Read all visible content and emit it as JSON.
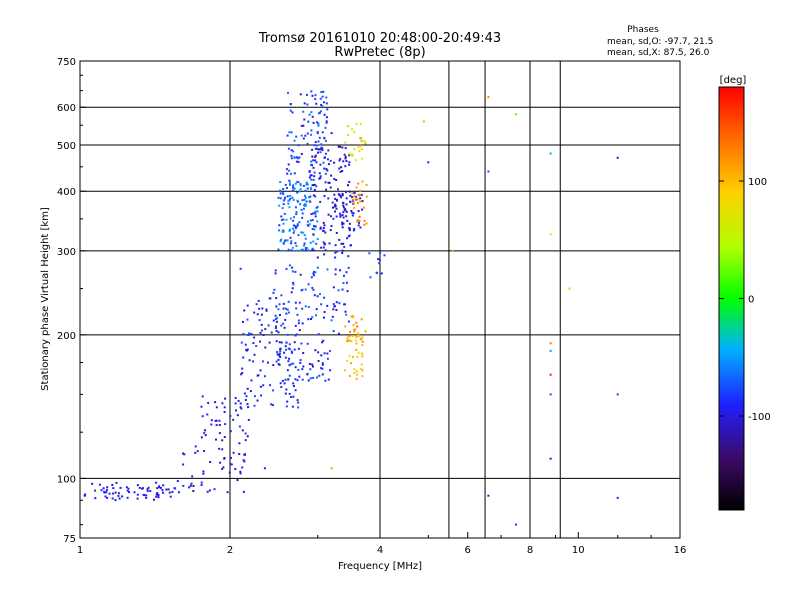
{
  "chart_data": {
    "type": "scatter",
    "title": "Tromsø 20161010 20:48:00-20:49:43",
    "subtitle": "RwPretec (8p)",
    "stats": {
      "heading": "Phases",
      "line1": "mean, sd,O: -97.7, 21.5",
      "line2": "mean, sd,X:  87.5, 26.0"
    },
    "xlabel": "Frequency [MHz]",
    "ylabel": "Stationary phase Virtual Height [km]",
    "x_scale": "log",
    "y_scale": "log",
    "xlim": [
      1,
      16
    ],
    "ylim": [
      75,
      750
    ],
    "x_ticks": [
      {
        "value": 1,
        "label": "1"
      },
      {
        "value": 2,
        "label": "2"
      },
      {
        "value": 4,
        "label": "4"
      },
      {
        "value": 6,
        "label": "6"
      },
      {
        "value": 8,
        "label": "8"
      },
      {
        "value": 10,
        "label": "10"
      },
      {
        "value": 16,
        "label": "16"
      }
    ],
    "y_ticks": [
      {
        "value": 75,
        "label": "75"
      },
      {
        "value": 100,
        "label": "100"
      },
      {
        "value": 200,
        "label": "200"
      },
      {
        "value": 300,
        "label": "300"
      },
      {
        "value": 400,
        "label": "400"
      },
      {
        "value": 500,
        "label": "500"
      },
      {
        "value": 600,
        "label": "600"
      },
      {
        "value": 750,
        "label": "750"
      }
    ],
    "x_grid": [
      2,
      4,
      5.5,
      6.5,
      8,
      9.2
    ],
    "y_grid": [
      100,
      200,
      300,
      400,
      500,
      600
    ],
    "grid": true,
    "colorbar": {
      "label": "[deg]",
      "range": [
        -180,
        180
      ],
      "ticks": [
        {
          "value": 100,
          "label": "100"
        },
        {
          "value": 0,
          "label": "0"
        },
        {
          "value": -100,
          "label": "-100"
        }
      ]
    },
    "clusters": [
      {
        "x": [
          1.02,
          1.55
        ],
        "y": [
          90,
          98
        ],
        "phase": [
          -110,
          -85
        ],
        "n": 70
      },
      {
        "x": [
          1.55,
          2.15
        ],
        "y": [
          93,
          118
        ],
        "phase": [
          -115,
          -85
        ],
        "n": 50
      },
      {
        "x": [
          1.75,
          2.2
        ],
        "y": [
          118,
          150
        ],
        "phase": [
          -115,
          -80
        ],
        "n": 45
      },
      {
        "x": [
          2.1,
          2.8
        ],
        "y": [
          140,
          240
        ],
        "phase": [
          -110,
          -70
        ],
        "n": 130
      },
      {
        "x": [
          2.4,
          3.5
        ],
        "y": [
          200,
          280
        ],
        "phase": [
          -105,
          -60
        ],
        "n": 90
      },
      {
        "x": [
          2.5,
          3.2
        ],
        "y": [
          160,
          195
        ],
        "phase": [
          -110,
          -70
        ],
        "n": 60
      },
      {
        "x": [
          2.5,
          3.0
        ],
        "y": [
          300,
          420
        ],
        "phase": [
          -85,
          -45
        ],
        "n": 160
      },
      {
        "x": [
          2.6,
          3.2
        ],
        "y": [
          420,
          650
        ],
        "phase": [
          -100,
          -60
        ],
        "n": 110
      },
      {
        "x": [
          2.9,
          3.5
        ],
        "y": [
          290,
          500
        ],
        "phase": [
          -120,
          -85
        ],
        "n": 130
      },
      {
        "x": [
          3.2,
          3.7
        ],
        "y": [
          330,
          400
        ],
        "phase": [
          -115,
          -80
        ],
        "n": 50
      },
      {
        "x": [
          3.4,
          3.7
        ],
        "y": [
          160,
          200
        ],
        "phase": [
          80,
          115
        ],
        "n": 40
      },
      {
        "x": [
          3.4,
          3.75
        ],
        "y": [
          200,
          220
        ],
        "phase": [
          100,
          135
        ],
        "n": 15
      },
      {
        "x": [
          3.5,
          3.8
        ],
        "y": [
          340,
          420
        ],
        "phase": [
          100,
          135
        ],
        "n": 25
      },
      {
        "x": [
          3.4,
          3.75
        ],
        "y": [
          460,
          560
        ],
        "phase": [
          35,
          110
        ],
        "n": 25
      },
      {
        "x": [
          3.8,
          4.1
        ],
        "y": [
          260,
          300
        ],
        "phase": [
          -95,
          -65
        ],
        "n": 10
      }
    ],
    "points": [
      {
        "x": 2.35,
        "y": 105,
        "phase": -95
      },
      {
        "x": 2.1,
        "y": 275,
        "phase": -85
      },
      {
        "x": 3.2,
        "y": 105,
        "phase": 110
      },
      {
        "x": 4.9,
        "y": 560,
        "phase": 110
      },
      {
        "x": 5.0,
        "y": 460,
        "phase": -100
      },
      {
        "x": 5.6,
        "y": 300,
        "phase": 115
      },
      {
        "x": 6.6,
        "y": 630,
        "phase": 125
      },
      {
        "x": 6.6,
        "y": 440,
        "phase": -75
      },
      {
        "x": 6.6,
        "y": 92,
        "phase": -110
      },
      {
        "x": 7.5,
        "y": 580,
        "phase": 20
      },
      {
        "x": 7.5,
        "y": 80,
        "phase": -80
      },
      {
        "x": 8.8,
        "y": 480,
        "phase": -45
      },
      {
        "x": 8.8,
        "y": 325,
        "phase": 40
      },
      {
        "x": 8.8,
        "y": 192,
        "phase": 130
      },
      {
        "x": 8.8,
        "y": 185,
        "phase": -45
      },
      {
        "x": 8.8,
        "y": 165,
        "phase": 170
      },
      {
        "x": 8.8,
        "y": 150,
        "phase": -75
      },
      {
        "x": 8.8,
        "y": 110,
        "phase": -105
      },
      {
        "x": 9.6,
        "y": 250,
        "phase": 30
      },
      {
        "x": 12.0,
        "y": 470,
        "phase": -110
      },
      {
        "x": 12.0,
        "y": 150,
        "phase": -80
      },
      {
        "x": 12.0,
        "y": 91,
        "phase": -90
      }
    ]
  }
}
